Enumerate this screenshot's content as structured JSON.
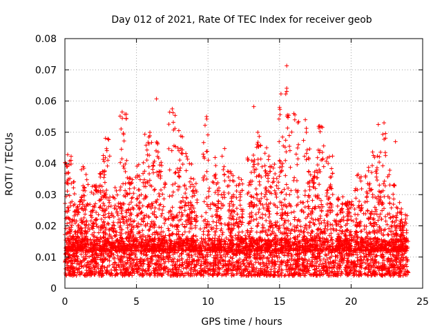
{
  "chart_data": {
    "type": "scatter",
    "title": "Day 012 of 2021, Rate Of TEC Index for receiver geob",
    "xlabel": "GPS time / hours",
    "ylabel": "ROTI / TECUs",
    "xlim": [
      0,
      25
    ],
    "ylim": [
      0,
      0.08
    ],
    "x_ticks": [
      "0",
      "5",
      "10",
      "15",
      "20",
      "25"
    ],
    "y_ticks": [
      "0",
      "0.01",
      "0.02",
      "0.03",
      "0.04",
      "0.05",
      "0.06",
      "0.07",
      "0.08"
    ],
    "x_tick_values": [
      0,
      5,
      10,
      15,
      20,
      25
    ],
    "y_tick_values": [
      0,
      0.01,
      0.02,
      0.03,
      0.04,
      0.05,
      0.06,
      0.07,
      0.08
    ],
    "grid": true,
    "marker": "+",
    "color": "#ff0000",
    "x_data_range": [
      0,
      24
    ],
    "baseline_range": [
      0.004,
      0.016
    ],
    "notable_points": [
      {
        "x": 15.5,
        "y": 0.0713
      },
      {
        "x": 15.5,
        "y": 0.0641
      },
      {
        "x": 15.5,
        "y": 0.0631
      },
      {
        "x": 15.1,
        "y": 0.0623
      },
      {
        "x": 6.4,
        "y": 0.0607
      },
      {
        "x": 13.2,
        "y": 0.0582
      },
      {
        "x": 4.0,
        "y": 0.0565
      },
      {
        "x": 4.2,
        "y": 0.0558
      },
      {
        "x": 7.5,
        "y": 0.0575
      },
      {
        "x": 9.9,
        "y": 0.055
      },
      {
        "x": 16.0,
        "y": 0.056
      },
      {
        "x": 16.8,
        "y": 0.054
      },
      {
        "x": 17.8,
        "y": 0.052
      },
      {
        "x": 22.3,
        "y": 0.053
      },
      {
        "x": 21.9,
        "y": 0.0525
      },
      {
        "x": 23.1,
        "y": 0.047
      }
    ],
    "clusters": [
      {
        "x": 0.2,
        "peak": 0.044
      },
      {
        "x": 0.5,
        "peak": 0.036
      },
      {
        "x": 1.0,
        "peak": 0.03
      },
      {
        "x": 1.4,
        "peak": 0.041
      },
      {
        "x": 2.0,
        "peak": 0.033
      },
      {
        "x": 2.6,
        "peak": 0.038
      },
      {
        "x": 2.9,
        "peak": 0.049
      },
      {
        "x": 3.5,
        "peak": 0.033
      },
      {
        "x": 4.1,
        "peak": 0.056
      },
      {
        "x": 4.6,
        "peak": 0.036
      },
      {
        "x": 5.2,
        "peak": 0.04
      },
      {
        "x": 5.7,
        "peak": 0.05
      },
      {
        "x": 6.3,
        "peak": 0.048
      },
      {
        "x": 6.8,
        "peak": 0.043
      },
      {
        "x": 7.5,
        "peak": 0.057
      },
      {
        "x": 8.0,
        "peak": 0.052
      },
      {
        "x": 8.6,
        "peak": 0.045
      },
      {
        "x": 9.0,
        "peak": 0.035
      },
      {
        "x": 9.9,
        "peak": 0.055
      },
      {
        "x": 10.5,
        "peak": 0.043
      },
      {
        "x": 11.0,
        "peak": 0.045
      },
      {
        "x": 11.6,
        "peak": 0.038
      },
      {
        "x": 12.2,
        "peak": 0.036
      },
      {
        "x": 13.0,
        "peak": 0.046
      },
      {
        "x": 13.6,
        "peak": 0.05
      },
      {
        "x": 14.2,
        "peak": 0.046
      },
      {
        "x": 14.7,
        "peak": 0.04
      },
      {
        "x": 15.2,
        "peak": 0.059
      },
      {
        "x": 15.6,
        "peak": 0.064
      },
      {
        "x": 16.2,
        "peak": 0.056
      },
      {
        "x": 16.9,
        "peak": 0.053
      },
      {
        "x": 17.4,
        "peak": 0.038
      },
      {
        "x": 17.9,
        "peak": 0.052
      },
      {
        "x": 18.5,
        "peak": 0.044
      },
      {
        "x": 19.2,
        "peak": 0.03
      },
      {
        "x": 19.8,
        "peak": 0.028
      },
      {
        "x": 20.5,
        "peak": 0.037
      },
      {
        "x": 21.2,
        "peak": 0.04
      },
      {
        "x": 21.7,
        "peak": 0.045
      },
      {
        "x": 22.2,
        "peak": 0.052
      },
      {
        "x": 22.8,
        "peak": 0.038
      },
      {
        "x": 23.3,
        "peak": 0.027
      },
      {
        "x": 23.7,
        "peak": 0.024
      }
    ]
  }
}
